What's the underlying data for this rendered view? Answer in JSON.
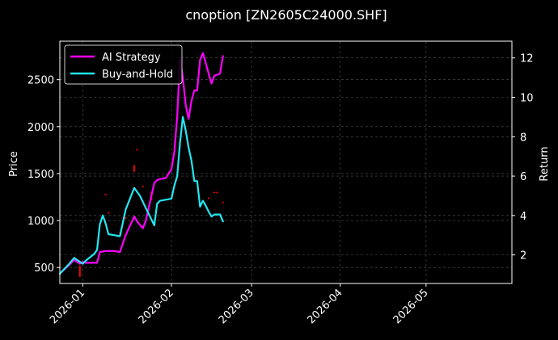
{
  "chart_data": {
    "type": "line",
    "title": "cnoption [ZN2605C24000.SHF]",
    "xlabel": "",
    "ylabel": "Price",
    "y2label": "Return",
    "grid": true,
    "legend_position": "top-left",
    "xlim": [
      "2025-12-24",
      "2026-05-31"
    ],
    "ylim": [
      330,
      2910
    ],
    "y2lim": [
      0.55,
      12.85
    ],
    "x_ticks": [
      "2026-01",
      "2026-02",
      "2026-03",
      "2026-04",
      "2026-05"
    ],
    "y_ticks": [
      500,
      1000,
      1500,
      2000,
      2500
    ],
    "y2_ticks": [
      2,
      4,
      6,
      8,
      10,
      12
    ],
    "colors": {
      "background": "#000000",
      "ai_strategy": "#ff00ff",
      "buy_and_hold": "#22e6f0",
      "price_marks": "#ff0000",
      "grid": "#555555",
      "axes": "#ffffff"
    },
    "series": [
      {
        "name": "AI Strategy",
        "axis": "right",
        "points": [
          [
            "2025-12-24",
            1.05
          ],
          [
            "2025-12-27",
            1.45
          ],
          [
            "2025-12-29",
            1.75
          ],
          [
            "2025-12-31",
            1.55
          ],
          [
            "2026-01-01",
            1.65
          ],
          [
            "2026-01-02",
            1.6
          ],
          [
            "2026-01-05",
            1.6
          ],
          [
            "2026-01-06",
            1.6
          ],
          [
            "2026-01-07",
            2.15
          ],
          [
            "2026-01-09",
            2.2
          ],
          [
            "2026-01-12",
            2.2
          ],
          [
            "2026-01-14",
            2.15
          ],
          [
            "2026-01-16",
            3.0
          ],
          [
            "2026-01-19",
            3.95
          ],
          [
            "2026-01-20",
            3.7
          ],
          [
            "2026-01-22",
            3.35
          ],
          [
            "2026-01-23",
            3.7
          ],
          [
            "2026-01-26",
            5.65
          ],
          [
            "2026-01-27",
            5.8
          ],
          [
            "2026-01-28",
            5.85
          ],
          [
            "2026-01-30",
            5.9
          ],
          [
            "2026-02-01",
            6.35
          ],
          [
            "2026-02-02",
            7.2
          ],
          [
            "2026-02-03",
            9.0
          ],
          [
            "2026-02-04",
            12.0
          ],
          [
            "2026-02-05",
            11.0
          ],
          [
            "2026-02-06",
            9.6
          ],
          [
            "2026-02-07",
            8.9
          ],
          [
            "2026-02-08",
            9.8
          ],
          [
            "2026-02-09",
            10.35
          ],
          [
            "2026-02-10",
            10.35
          ],
          [
            "2026-02-11",
            11.9
          ],
          [
            "2026-02-12",
            12.25
          ],
          [
            "2026-02-13",
            11.75
          ],
          [
            "2026-02-14",
            11.2
          ],
          [
            "2026-02-15",
            10.7
          ],
          [
            "2026-02-16",
            11.1
          ],
          [
            "2026-02-17",
            11.15
          ],
          [
            "2026-02-18",
            11.2
          ],
          [
            "2026-02-19",
            12.1
          ]
        ]
      },
      {
        "name": "Buy-and-Hold",
        "axis": "right",
        "points": [
          [
            "2025-12-24",
            1.05
          ],
          [
            "2025-12-27",
            1.5
          ],
          [
            "2025-12-29",
            1.85
          ],
          [
            "2025-12-31",
            1.65
          ],
          [
            "2026-01-01",
            1.55
          ],
          [
            "2026-01-02",
            1.7
          ],
          [
            "2026-01-05",
            2.05
          ],
          [
            "2026-01-06",
            2.25
          ],
          [
            "2026-01-07",
            3.55
          ],
          [
            "2026-01-08",
            4.0
          ],
          [
            "2026-01-09",
            3.6
          ],
          [
            "2026-01-10",
            3.05
          ],
          [
            "2026-01-12",
            3.0
          ],
          [
            "2026-01-14",
            2.95
          ],
          [
            "2026-01-16",
            4.3
          ],
          [
            "2026-01-19",
            5.4
          ],
          [
            "2026-01-21",
            5.0
          ],
          [
            "2026-01-23",
            4.4
          ],
          [
            "2026-01-26",
            3.5
          ],
          [
            "2026-01-27",
            4.6
          ],
          [
            "2026-01-28",
            4.75
          ],
          [
            "2026-01-30",
            4.8
          ],
          [
            "2026-02-01",
            4.85
          ],
          [
            "2026-02-02",
            5.5
          ],
          [
            "2026-02-03",
            6.0
          ],
          [
            "2026-02-04",
            7.7
          ],
          [
            "2026-02-05",
            9.0
          ],
          [
            "2026-02-06",
            8.3
          ],
          [
            "2026-02-07",
            7.45
          ],
          [
            "2026-02-08",
            6.8
          ],
          [
            "2026-02-09",
            5.75
          ],
          [
            "2026-02-10",
            5.75
          ],
          [
            "2026-02-11",
            4.45
          ],
          [
            "2026-02-12",
            4.75
          ],
          [
            "2026-02-13",
            4.5
          ],
          [
            "2026-02-14",
            4.2
          ],
          [
            "2026-02-15",
            3.95
          ],
          [
            "2026-02-16",
            4.05
          ],
          [
            "2026-02-17",
            4.05
          ],
          [
            "2026-02-18",
            4.05
          ],
          [
            "2026-02-19",
            3.7
          ]
        ]
      }
    ],
    "price_marks": [
      {
        "x": "2025-12-31",
        "low": 400,
        "high": 520
      },
      {
        "x": "2026-01-09",
        "low": 1270,
        "high": 1285
      },
      {
        "x": "2026-01-10",
        "low": 1075,
        "high": 1090
      },
      {
        "x": "2026-01-14",
        "low": 860,
        "high": 875
      },
      {
        "x": "2026-01-16",
        "low": 1020,
        "high": 1035
      },
      {
        "x": "2026-01-19",
        "low": 1520,
        "high": 1590
      },
      {
        "x": "2026-01-20",
        "low": 1745,
        "high": 1760
      },
      {
        "x": "2026-01-22",
        "low": 1355,
        "high": 1370
      },
      {
        "x": "2026-01-25",
        "low": 1220,
        "high": 1300
      },
      {
        "x": "2026-02-14",
        "low": 1230,
        "high": 1245
      },
      {
        "x": "2026-02-16",
        "low": 1290,
        "high": 1305
      },
      {
        "x": "2026-02-17",
        "low": 1290,
        "high": 1305
      },
      {
        "x": "2026-02-19",
        "low": 1185,
        "high": 1200
      }
    ]
  }
}
